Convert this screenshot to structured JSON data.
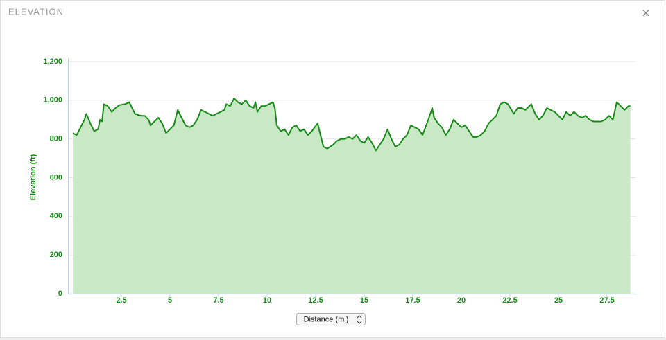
{
  "chart_data": {
    "type": "area",
    "title": "ELEVATION",
    "close": "×",
    "y_label": "Elevation (ft)",
    "x_label": "Distance (mi)",
    "line_color": "#168a16",
    "fill_color": "#c9e8c6",
    "grid": true,
    "xlim": [
      0,
      29
    ],
    "xticks": [
      2.5,
      5,
      7.5,
      10,
      12.5,
      15,
      17.5,
      20,
      22.5,
      25,
      27.5
    ],
    "ylim": [
      0,
      1200
    ],
    "yticks": [
      0,
      200,
      400,
      600,
      800,
      {
        "value": 1000,
        "label": "1,000"
      },
      {
        "value": 1200,
        "label": "1,200"
      }
    ],
    "x": [
      0.0,
      0.2,
      0.4,
      0.6,
      0.7,
      0.9,
      1.1,
      1.3,
      1.4,
      1.5,
      1.6,
      1.8,
      2.0,
      2.2,
      2.4,
      2.7,
      2.9,
      3.0,
      3.2,
      3.5,
      3.7,
      3.9,
      4.0,
      4.2,
      4.4,
      4.6,
      4.8,
      5.0,
      5.2,
      5.4,
      5.6,
      5.8,
      6.0,
      6.2,
      6.4,
      6.6,
      6.8,
      7.0,
      7.2,
      7.4,
      7.6,
      7.8,
      7.9,
      8.1,
      8.3,
      8.5,
      8.7,
      8.9,
      9.1,
      9.3,
      9.4,
      9.5,
      9.7,
      9.9,
      10.1,
      10.3,
      10.4,
      10.5,
      10.7,
      10.9,
      11.1,
      11.3,
      11.5,
      11.7,
      11.9,
      12.1,
      12.3,
      12.6,
      12.8,
      12.9,
      13.1,
      13.4,
      13.6,
      13.8,
      14.0,
      14.2,
      14.4,
      14.6,
      14.8,
      15.0,
      15.2,
      15.4,
      15.6,
      15.8,
      16.0,
      16.2,
      16.4,
      16.6,
      16.8,
      17.0,
      17.2,
      17.4,
      17.6,
      17.8,
      18.0,
      18.3,
      18.5,
      18.6,
      18.8,
      19.0,
      19.2,
      19.4,
      19.6,
      19.8,
      20.0,
      20.2,
      20.4,
      20.6,
      20.8,
      21.0,
      21.2,
      21.4,
      21.6,
      21.8,
      22.0,
      22.2,
      22.4,
      22.7,
      22.9,
      23.1,
      23.3,
      23.6,
      23.8,
      24.0,
      24.2,
      24.4,
      24.6,
      24.8,
      25.0,
      25.2,
      25.4,
      25.6,
      25.8,
      26.0,
      26.2,
      26.4,
      26.6,
      26.8,
      27.0,
      27.2,
      27.4,
      27.6,
      27.8,
      28.0,
      28.2,
      28.4,
      28.6,
      28.7
    ],
    "values": [
      830,
      820,
      860,
      900,
      930,
      880,
      840,
      850,
      900,
      890,
      980,
      970,
      940,
      960,
      975,
      980,
      990,
      970,
      930,
      920,
      920,
      900,
      870,
      890,
      910,
      880,
      830,
      850,
      870,
      950,
      910,
      870,
      860,
      870,
      900,
      950,
      940,
      930,
      920,
      930,
      940,
      950,
      980,
      970,
      1010,
      990,
      980,
      1000,
      970,
      960,
      990,
      940,
      970,
      970,
      980,
      990,
      960,
      870,
      840,
      850,
      820,
      860,
      870,
      840,
      850,
      820,
      840,
      880,
      800,
      760,
      750,
      770,
      790,
      800,
      800,
      810,
      800,
      820,
      790,
      780,
      810,
      780,
      740,
      770,
      800,
      850,
      800,
      760,
      770,
      800,
      820,
      870,
      860,
      850,
      820,
      900,
      960,
      910,
      880,
      860,
      820,
      850,
      900,
      880,
      860,
      870,
      840,
      810,
      810,
      820,
      840,
      880,
      900,
      920,
      980,
      990,
      980,
      930,
      960,
      960,
      950,
      980,
      930,
      900,
      920,
      960,
      950,
      940,
      920,
      900,
      940,
      920,
      940,
      920,
      910,
      920,
      900,
      890,
      890,
      890,
      900,
      920,
      900,
      990,
      970,
      950,
      970,
      970
    ]
  }
}
